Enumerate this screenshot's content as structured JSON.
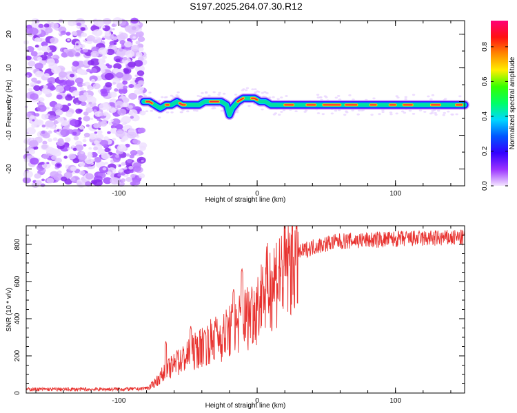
{
  "figure": {
    "title": "S197.2025.264.07.30.R12"
  },
  "chart_data": [
    {
      "type": "heatmap",
      "name": "spectrogram",
      "xlabel": "Height of straight line (km)",
      "ylabel": "Frequency (Hz)",
      "xlim": [
        -167,
        150
      ],
      "ylim": [
        -25,
        24
      ],
      "xticks": [
        -100,
        0,
        100
      ],
      "yticks": [
        -20,
        -10,
        0,
        10,
        20
      ],
      "noise_region_x": [
        -167,
        -82
      ],
      "signal_track": {
        "x": [
          -82,
          -78,
          -74,
          -70,
          -66,
          -62,
          -58,
          -54,
          -50,
          -46,
          -42,
          -38,
          -34,
          -30,
          -26,
          -22,
          -20,
          -18,
          -14,
          -10,
          -6,
          -2,
          2,
          6,
          10,
          20,
          40,
          60,
          80,
          100,
          120,
          140,
          150
        ],
        "y": [
          0,
          0,
          -1,
          -2,
          -1,
          -1,
          0,
          -1,
          -1,
          -1,
          -1,
          0,
          0,
          0,
          0,
          -1,
          -4,
          -2,
          0,
          1,
          1,
          1,
          0,
          0,
          -1,
          -1,
          -1,
          -1,
          -1,
          -1,
          -1,
          -1,
          -1
        ]
      },
      "colorbar": {
        "label": "Normalized spectral amplitude",
        "ticks": [
          0.0,
          0.2,
          0.4,
          0.6,
          0.8
        ],
        "tick_labels": [
          "0.0",
          "0.2",
          "0.4",
          "0.6",
          "0.8"
        ],
        "range": [
          0,
          0.95
        ],
        "colors": [
          "#f4e6ff",
          "#9a33ff",
          "#3300ff",
          "#0055ff",
          "#00d8ff",
          "#00ff66",
          "#33ff00",
          "#ffee00",
          "#ff8800",
          "#ff1111",
          "#ff0077"
        ]
      }
    },
    {
      "type": "line",
      "name": "snr",
      "xlabel": "Height of straight line (km)",
      "ylabel": "SNR (10 * v/v)",
      "xlim": [
        -167,
        150
      ],
      "ylim": [
        0,
        900
      ],
      "xticks": [
        -100,
        0,
        100
      ],
      "yticks": [
        0,
        200,
        400,
        600,
        800
      ],
      "color": "#e8322f",
      "envelope": {
        "x": [
          -167,
          -120,
          -85,
          -78,
          -72,
          -66,
          -60,
          -54,
          -48,
          -42,
          -36,
          -30,
          -24,
          -18,
          -12,
          -6,
          0,
          6,
          12,
          18,
          24,
          30,
          36,
          42,
          48,
          54,
          60,
          70,
          80,
          100,
          120,
          150
        ],
        "y": [
          20,
          20,
          22,
          30,
          70,
          120,
          150,
          180,
          210,
          240,
          270,
          290,
          310,
          340,
          380,
          420,
          470,
          540,
          610,
          660,
          710,
          750,
          775,
          790,
          800,
          810,
          815,
          820,
          823,
          828,
          832,
          835
        ]
      },
      "spikes": [
        {
          "x": -66,
          "y": 280
        },
        {
          "x": -58,
          "y": 230
        },
        {
          "x": -48,
          "y": 360
        },
        {
          "x": -38,
          "y": 340
        },
        {
          "x": -30,
          "y": 370
        },
        {
          "x": -22,
          "y": 420
        },
        {
          "x": -17,
          "y": 560
        },
        {
          "x": -11,
          "y": 670
        },
        {
          "x": -4,
          "y": 520
        },
        {
          "x": 4,
          "y": 600
        }
      ]
    }
  ]
}
